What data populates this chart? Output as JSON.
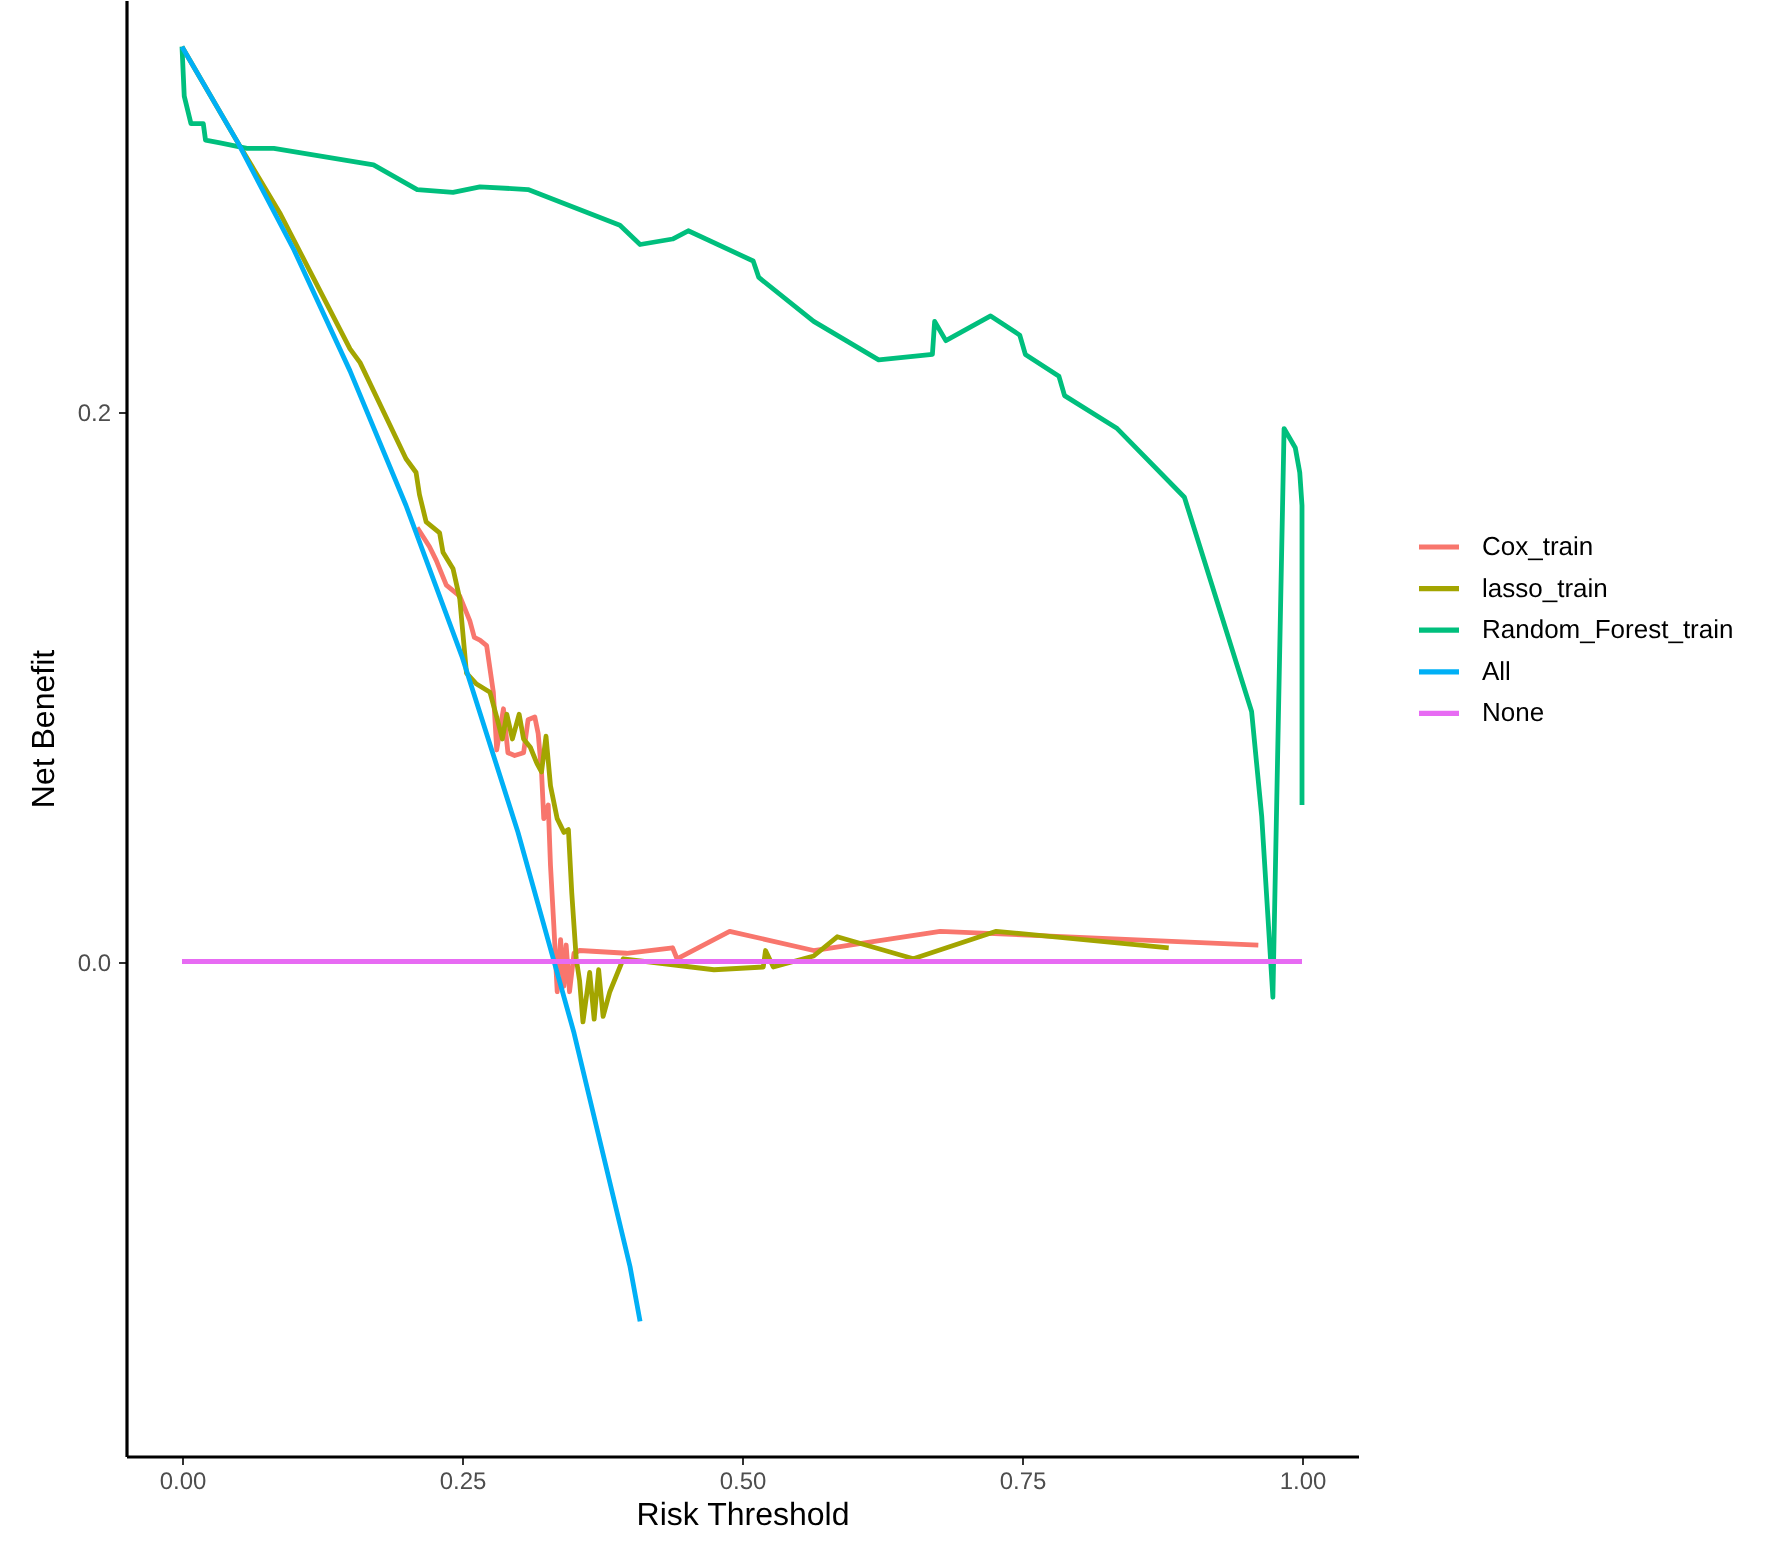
{
  "chart_data": {
    "type": "line",
    "xlabel": "Risk Threshold",
    "ylabel": "Net Benefit",
    "xlim": [
      -0.05,
      1.05
    ],
    "ylim": [
      -0.18,
      0.35
    ],
    "xticks": [
      {
        "value": 0,
        "label": "0.00"
      },
      {
        "value": 0.25,
        "label": "0.25"
      },
      {
        "value": 0.5,
        "label": "0.50"
      },
      {
        "value": 0.75,
        "label": "0.75"
      },
      {
        "value": 1,
        "label": "1.00"
      }
    ],
    "yticks": [
      {
        "value": 0,
        "label": "0.0"
      },
      {
        "value": 0.2,
        "label": "0.2"
      }
    ],
    "grid": false,
    "legend": "right",
    "series": [
      {
        "name": "Cox_train",
        "color": "#f8766d",
        "x": [
          0.21,
          0.221,
          0.227,
          0.236,
          0.248,
          0.257,
          0.261,
          0.266,
          0.272,
          0.278,
          0.281,
          0.287,
          0.291,
          0.297,
          0.305,
          0.309,
          0.315,
          0.318,
          0.321,
          0.323,
          0.327,
          0.329,
          0.332,
          0.335,
          0.338,
          0.341,
          0.343,
          0.346,
          0.35,
          0.355,
          0.397,
          0.438,
          0.442,
          0.489,
          0.564,
          0.677,
          0.961
        ],
        "values": [
          0.158,
          0.151,
          0.146,
          0.137,
          0.133,
          0.124,
          0.118,
          0.117,
          0.115,
          0.098,
          0.077,
          0.092,
          0.076,
          0.075,
          0.076,
          0.088,
          0.089,
          0.083,
          0.069,
          0.052,
          0.057,
          0.035,
          0.013,
          -0.011,
          0.008,
          -0.009,
          0.006,
          -0.011,
          0.003,
          0.004,
          0.003,
          0.005,
          0.001,
          0.011,
          0.004,
          0.011,
          0.006
        ]
      },
      {
        "name": "lasso_train",
        "color": "#a3a500",
        "x": [
          0,
          0.05,
          0.088,
          0.15,
          0.159,
          0.2,
          0.209,
          0.212,
          0.218,
          0.23,
          0.233,
          0.242,
          0.248,
          0.254,
          0.263,
          0.275,
          0.281,
          0.286,
          0.29,
          0.295,
          0.301,
          0.305,
          0.311,
          0.317,
          0.321,
          0.325,
          0.329,
          0.335,
          0.341,
          0.345,
          0.348,
          0.352,
          0.355,
          0.358,
          0.364,
          0.368,
          0.372,
          0.376,
          0.382,
          0.388,
          0.394,
          0.475,
          0.519,
          0.521,
          0.528,
          0.564,
          0.585,
          0.653,
          0.727,
          0.881
        ],
        "values": [
          0.333,
          0.298,
          0.272,
          0.223,
          0.218,
          0.183,
          0.178,
          0.17,
          0.16,
          0.156,
          0.149,
          0.143,
          0.132,
          0.105,
          0.101,
          0.098,
          0.089,
          0.081,
          0.09,
          0.081,
          0.09,
          0.081,
          0.078,
          0.072,
          0.069,
          0.082,
          0.064,
          0.052,
          0.047,
          0.048,
          0.025,
          0.001,
          -0.007,
          -0.022,
          -0.004,
          -0.021,
          -0.003,
          -0.02,
          -0.011,
          -0.005,
          0.001,
          -0.003,
          -0.002,
          0.004,
          -0.002,
          0.002,
          0.009,
          0.001,
          0.011,
          0.005
        ]
      },
      {
        "name": "Random_Forest_train",
        "color": "#00bf7d",
        "x": [
          0,
          0.002,
          0.008,
          0.019,
          0.021,
          0.034,
          0.058,
          0.082,
          0.171,
          0.21,
          0.242,
          0.266,
          0.309,
          0.391,
          0.409,
          0.438,
          0.452,
          0.51,
          0.515,
          0.564,
          0.622,
          0.67,
          0.672,
          0.682,
          0.722,
          0.748,
          0.753,
          0.783,
          0.788,
          0.835,
          0.895,
          0.955,
          0.964,
          0.974,
          0.984,
          0.994,
          0.998,
          1,
          1
        ],
        "values": [
          0.333,
          0.315,
          0.305,
          0.305,
          0.299,
          0.298,
          0.296,
          0.296,
          0.29,
          0.281,
          0.28,
          0.282,
          0.281,
          0.268,
          0.261,
          0.263,
          0.266,
          0.255,
          0.249,
          0.233,
          0.219,
          0.221,
          0.233,
          0.226,
          0.235,
          0.228,
          0.221,
          0.213,
          0.206,
          0.194,
          0.169,
          0.091,
          0.053,
          -0.013,
          0.194,
          0.187,
          0.178,
          0.166,
          0.057
        ]
      },
      {
        "name": "All",
        "color": "#00b0f6",
        "x": [
          0,
          0.05,
          0.1,
          0.15,
          0.2,
          0.25,
          0.3,
          0.35,
          0.4,
          0.409
        ],
        "values": [
          0.333,
          0.298,
          0.259,
          0.215,
          0.166,
          0.111,
          0.047,
          -0.026,
          -0.111,
          -0.131
        ]
      },
      {
        "name": "None",
        "color": "#e76bf3",
        "x": [
          0,
          1
        ],
        "values": [
          0,
          0
        ]
      }
    ]
  }
}
